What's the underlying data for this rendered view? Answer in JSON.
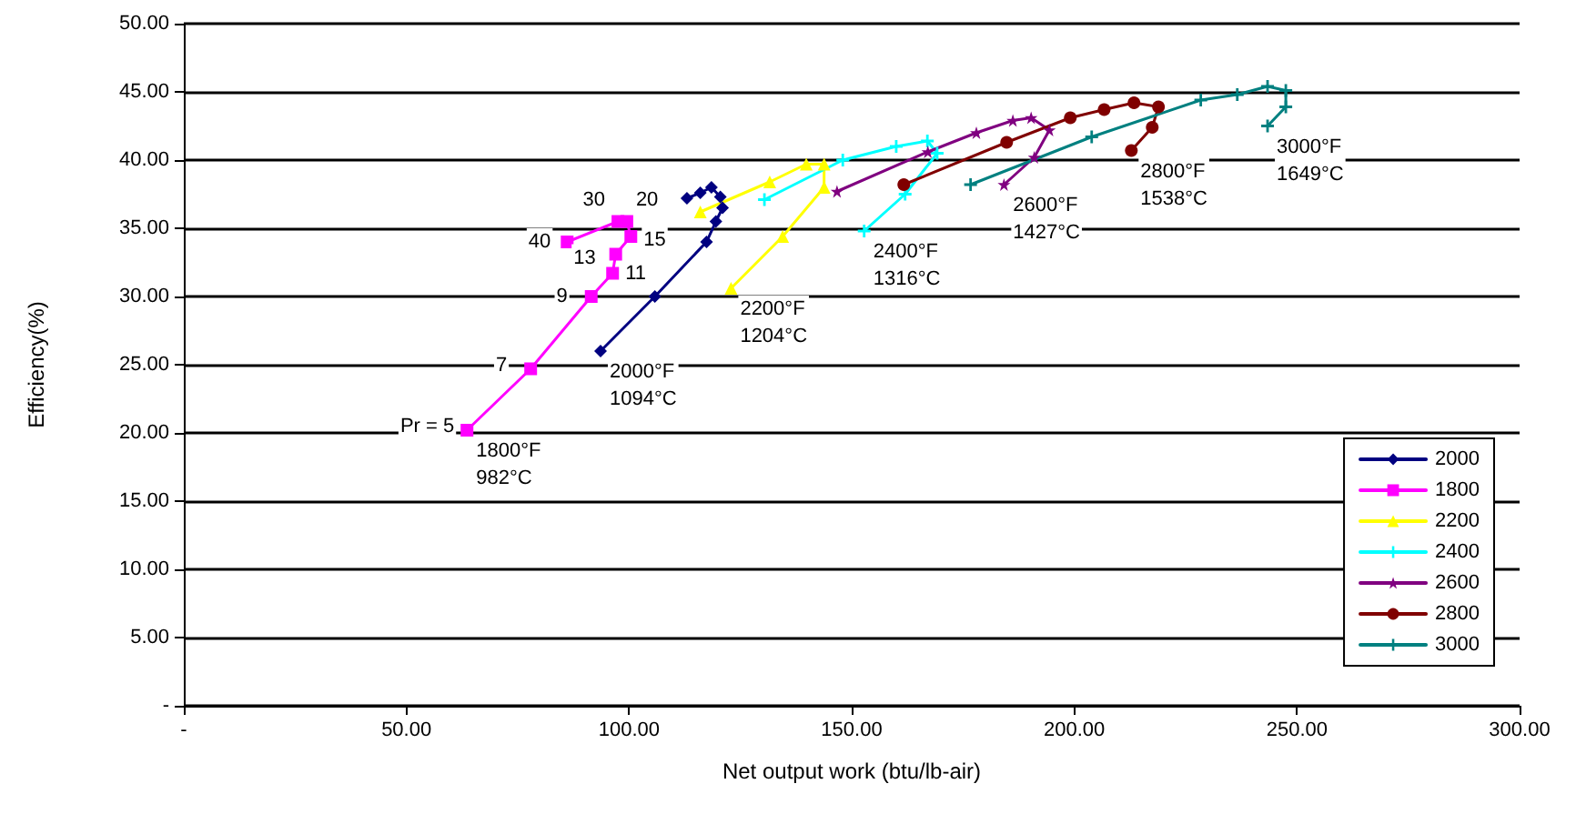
{
  "chart_data": {
    "type": "line",
    "xlabel": "Net output work (btu/lb-air)",
    "ylabel": "Efficiency(%)",
    "xlim": [
      0,
      300
    ],
    "xticks": [
      {
        "value": 0,
        "label": "-"
      },
      {
        "value": 50,
        "label": "50.00"
      },
      {
        "value": 100,
        "label": "100.00"
      },
      {
        "value": 150,
        "label": "150.00"
      },
      {
        "value": 200,
        "label": "200.00"
      },
      {
        "value": 250,
        "label": "250.00"
      },
      {
        "value": 300,
        "label": "300.00"
      }
    ],
    "ylim": [
      0,
      50
    ],
    "yticks": [
      {
        "value": 0,
        "label": "-"
      },
      {
        "value": 5,
        "label": "5.00"
      },
      {
        "value": 10,
        "label": "10.00"
      },
      {
        "value": 15,
        "label": "15.00"
      },
      {
        "value": 20,
        "label": "20.00"
      },
      {
        "value": 25,
        "label": "25.00"
      },
      {
        "value": 30,
        "label": "30.00"
      },
      {
        "value": 35,
        "label": "35.00"
      },
      {
        "value": 40,
        "label": "40.00"
      },
      {
        "value": 45,
        "label": "45.00"
      },
      {
        "value": 50,
        "label": "50.00"
      }
    ],
    "grid": "y",
    "legend": "bottom right",
    "line_style": "solid",
    "series": [
      {
        "name": "2000",
        "color": "#000080",
        "marker": "diamond",
        "x": [
          93.6,
          105.8,
          117.4,
          119.5,
          121,
          120.5,
          118.5,
          116,
          113
        ],
        "values": [
          26.0,
          30.0,
          34.0,
          35.5,
          36.5,
          37.3,
          38.0,
          37.6,
          37.2
        ]
      },
      {
        "name": "1800",
        "color": "#ff00ff",
        "marker": "square",
        "x": [
          63.6,
          77.9,
          91.5,
          96.3,
          97.0,
          100.4,
          99.5,
          97.5,
          86.1
        ],
        "values": [
          20.2,
          24.7,
          30.0,
          31.7,
          33.1,
          34.4,
          35.5,
          35.5,
          34.0
        ]
      },
      {
        "name": "2200",
        "color": "#ffff00",
        "marker": "triangle",
        "x": [
          122.9,
          134.5,
          143.8,
          143.8,
          139.8,
          131.6,
          116
        ],
        "values": [
          30.6,
          34.4,
          38.0,
          39.7,
          39.7,
          38.4,
          36.2
        ]
      },
      {
        "name": "2400",
        "color": "#00ffff",
        "marker": "cross",
        "x": [
          152.8,
          162,
          169.2,
          167,
          160,
          148,
          130.4
        ],
        "values": [
          34.8,
          37.5,
          40.5,
          41.4,
          41.0,
          40.0,
          37.1
        ]
      },
      {
        "name": "2600",
        "color": "#800080",
        "marker": "star",
        "x": [
          184.2,
          191,
          194.4,
          190.3,
          186.2,
          178,
          167.1,
          146.7
        ],
        "values": [
          38.2,
          40.2,
          42.2,
          43.1,
          42.9,
          42.0,
          40.6,
          37.7
        ]
      },
      {
        "name": "2800",
        "color": "#800000",
        "marker": "circle",
        "x": [
          212.8,
          217.5,
          218.9,
          213.4,
          206.7,
          199.1,
          184.8,
          161.7
        ],
        "values": [
          40.7,
          42.4,
          43.9,
          44.2,
          43.7,
          43.1,
          41.3,
          38.2
        ]
      },
      {
        "name": "3000",
        "color": "#008080",
        "marker": "cross",
        "x": [
          243.4,
          247.5,
          247.5,
          243.4,
          236.6,
          228.4,
          203.9,
          176.7
        ],
        "values": [
          42.5,
          43.9,
          45.1,
          45.4,
          44.8,
          44.4,
          41.7,
          38.2
        ]
      }
    ],
    "annotations": [
      {
        "text": "Pr = 5",
        "x": 63.6,
        "y": 20.2
      },
      {
        "text": "7",
        "x": 77.9,
        "y": 24.7
      },
      {
        "text": "9",
        "x": 91.5,
        "y": 30.0
      },
      {
        "text": "11",
        "x": 96.3,
        "y": 31.7
      },
      {
        "text": "13",
        "x": 97.0,
        "y": 33.1
      },
      {
        "text": "15",
        "x": 100.4,
        "y": 34.4
      },
      {
        "text": "20",
        "x": 99.5,
        "y": 35.5
      },
      {
        "text": "30",
        "x": 97.5,
        "y": 35.5
      },
      {
        "text": "40",
        "x": 86.1,
        "y": 34.0
      },
      {
        "text": "1800°F\n982°C",
        "x": 63.6,
        "y": 20.2
      },
      {
        "text": "2000°F\n1094°C",
        "x": 93.6,
        "y": 26.0
      },
      {
        "text": "2200°F\n1204°C",
        "x": 122.9,
        "y": 30.6
      },
      {
        "text": "2400°F\n1316°C",
        "x": 152.8,
        "y": 34.8
      },
      {
        "text": "2600°F\n1427°C",
        "x": 184.2,
        "y": 38.2
      },
      {
        "text": "2800°F\n1538°C",
        "x": 212.8,
        "y": 40.7
      },
      {
        "text": "3000°F\n1649°C",
        "x": 243.4,
        "y": 42.5
      }
    ]
  }
}
